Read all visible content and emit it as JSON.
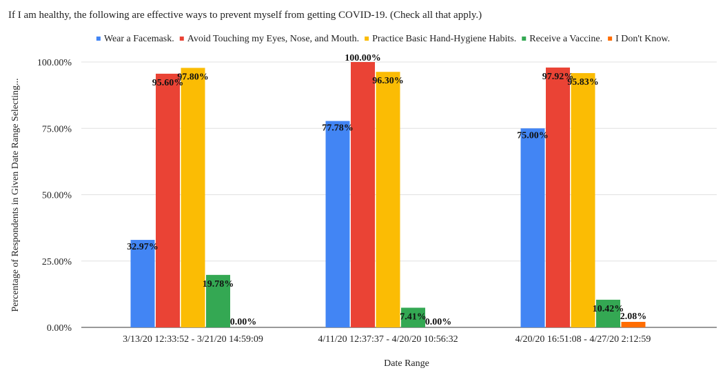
{
  "chart_data": {
    "type": "bar",
    "title": "If I am healthy, the following are effective ways to prevent myself from getting COVID-19. (Check all that apply.)",
    "xlabel": "Date Range",
    "ylabel": "Percentage of Respondents in Given Date Range Selecting...",
    "ylim": [
      0,
      100
    ],
    "yticks": [
      0,
      25,
      50,
      75,
      100
    ],
    "ytick_labels": [
      "0.00%",
      "25.00%",
      "50.00%",
      "75.00%",
      "100.00%"
    ],
    "legend_position": "top",
    "grid": true,
    "categories": [
      "3/13/20  12:33:52 - 3/21/20  14:59:09",
      "4/11/20  12:37:37 - 4/20/20  10:56:32",
      "4/20/20  16:51:08 - 4/27/20  2:12:59"
    ],
    "series": [
      {
        "name": "Wear a Facemask.",
        "color": "#4285f4",
        "values": [
          32.97,
          77.78,
          75.0
        ],
        "labels": [
          "32.97%",
          "77.78%",
          "75.00%"
        ]
      },
      {
        "name": "Avoid Touching my Eyes, Nose, and Mouth.",
        "color": "#ea4335",
        "values": [
          95.6,
          100.0,
          97.92
        ],
        "labels": [
          "95.60%",
          "100.00%",
          "97.92%"
        ]
      },
      {
        "name": "Practice Basic Hand-Hygiene Habits.",
        "color": "#fbbc04",
        "values": [
          97.8,
          96.3,
          95.83
        ],
        "labels": [
          "97.80%",
          "96.30%",
          "95.83%"
        ]
      },
      {
        "name": "Receive a Vaccine.",
        "color": "#34a853",
        "values": [
          19.78,
          7.41,
          10.42
        ],
        "labels": [
          "19.78%",
          "7.41%",
          "10.42%"
        ]
      },
      {
        "name": "I Don't Know.",
        "color": "#ff6d01",
        "values": [
          0.0,
          0.0,
          2.08
        ],
        "labels": [
          "0.00%",
          "0.00%",
          "2.08%"
        ]
      }
    ]
  }
}
